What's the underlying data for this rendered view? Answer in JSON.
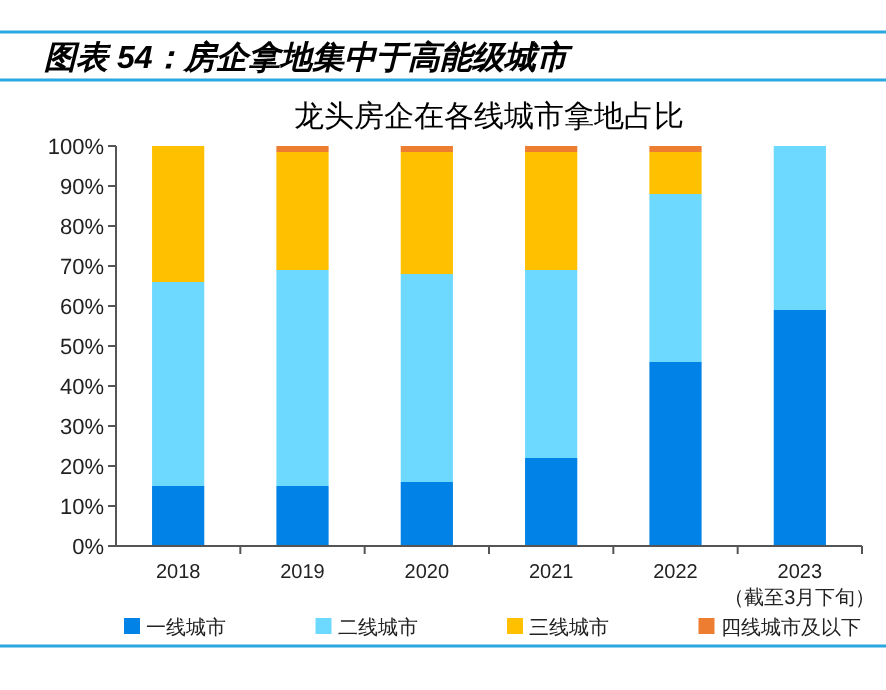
{
  "chart_data": {
    "type": "bar",
    "title": "图表 54：房企拿地集中于高能级城市",
    "subtitle": "龙头房企在各线城市拿地占比",
    "categories": [
      "2018",
      "2019",
      "2020",
      "2021",
      "2022",
      "2023\n（截至3月下旬）"
    ],
    "series": [
      {
        "name": "一线城市",
        "color": "#0082e6",
        "values": [
          15,
          15,
          16,
          22,
          46,
          59
        ]
      },
      {
        "name": "二线城市",
        "color": "#6dd9ff",
        "values": [
          51,
          54,
          52,
          47,
          42,
          41
        ]
      },
      {
        "name": "三线城市",
        "color": "#ffc000",
        "values": [
          34,
          29.5,
          30.5,
          29.5,
          10.5,
          0
        ]
      },
      {
        "name": "四线城市及以下",
        "color": "#ed7d31",
        "values": [
          0,
          1.5,
          1.5,
          1.5,
          1.5,
          0
        ]
      }
    ],
    "stacked": true,
    "ylim": [
      0,
      100
    ],
    "yticks": [
      {
        "value": 0,
        "label": "0%"
      },
      {
        "value": 10,
        "label": "10%"
      },
      {
        "value": 20,
        "label": "20%"
      },
      {
        "value": 30,
        "label": "30%"
      },
      {
        "value": 40,
        "label": "40%"
      },
      {
        "value": 50,
        "label": "50%"
      },
      {
        "value": 60,
        "label": "60%"
      },
      {
        "value": 70,
        "label": "70%"
      },
      {
        "value": 80,
        "label": "80%"
      },
      {
        "value": 90,
        "label": "90%"
      },
      {
        "value": 100,
        "label": "100%"
      }
    ],
    "grid": false,
    "legend": "bottom"
  }
}
